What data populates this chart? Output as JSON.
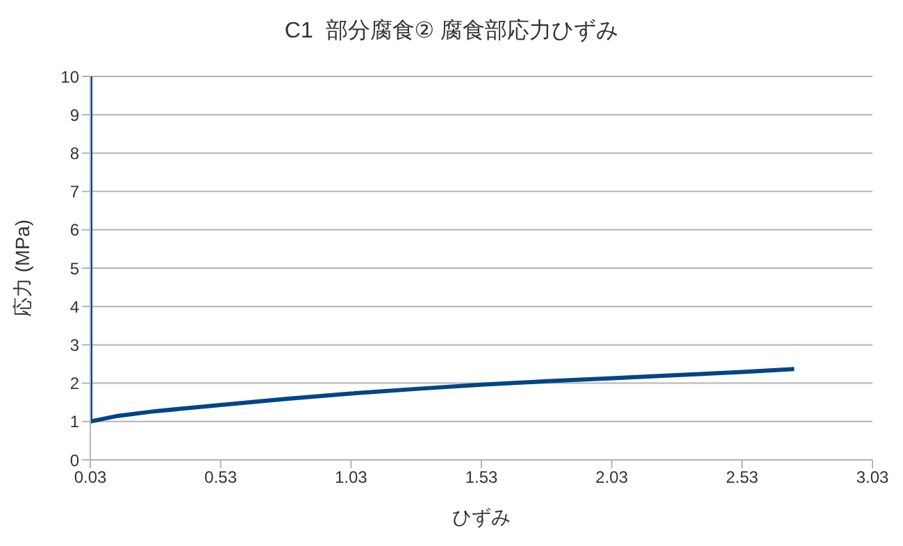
{
  "chart_data": {
    "type": "line",
    "title": "C1  部分腐食② 腐食部応力ひずみ",
    "xlabel": "ひずみ",
    "ylabel": "応力 (MPa)",
    "series": [
      {
        "color": "#004586",
        "x": [
          0.03,
          0.03,
          0.08,
          0.13,
          0.28,
          0.53,
          0.78,
          1.03,
          1.28,
          1.53,
          1.78,
          2.03,
          2.28,
          2.53,
          2.73
        ],
        "values": [
          10,
          1.0,
          1.07,
          1.14,
          1.27,
          1.43,
          1.59,
          1.73,
          1.85,
          1.96,
          2.05,
          2.13,
          2.21,
          2.29,
          2.37
        ]
      }
    ],
    "xlim": [
      0.03,
      3.03
    ],
    "xticks": [
      0.03,
      0.53,
      1.03,
      1.53,
      2.03,
      2.53,
      3.03
    ],
    "ylim": [
      0,
      10
    ],
    "yticks": [
      0,
      1,
      2,
      3,
      4,
      5,
      6,
      7,
      8,
      9,
      10
    ],
    "grid": "y",
    "legend": false,
    "marker": "none",
    "line_style": "solid"
  }
}
